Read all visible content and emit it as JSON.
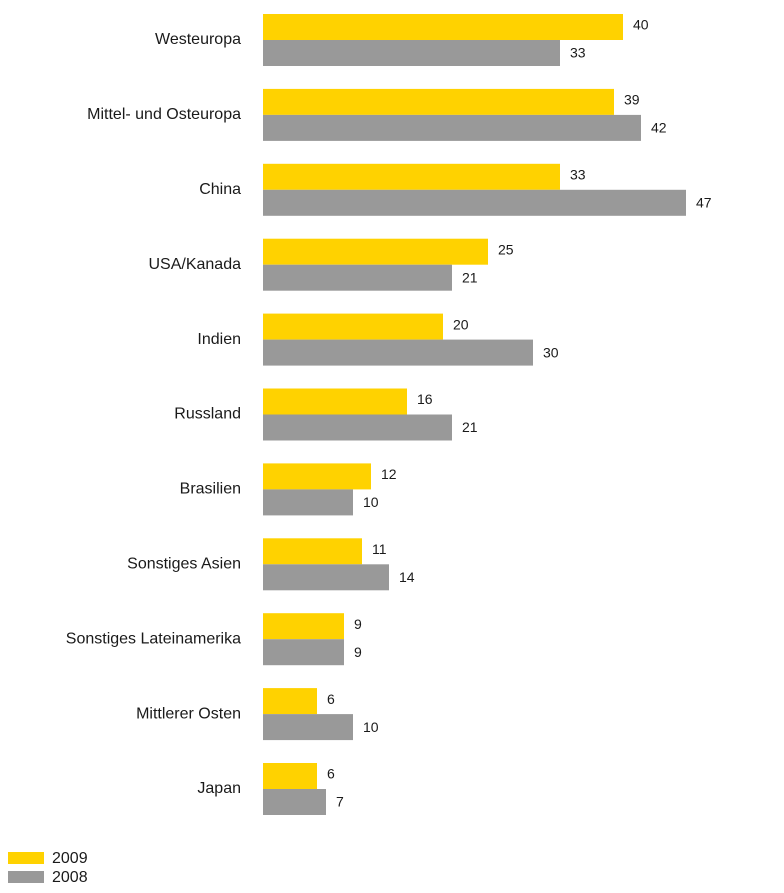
{
  "chart_data": {
    "type": "bar",
    "orientation": "horizontal",
    "categories": [
      "Westeuropa",
      "Mittel- und Osteuropa",
      "China",
      "USA/Kanada",
      "Indien",
      "Russland",
      "Brasilien",
      "Sonstiges Asien",
      "Sonstiges Lateinamerika",
      "Mittlerer Osten",
      "Japan"
    ],
    "series": [
      {
        "name": "2009",
        "color": "#ffd200",
        "values": [
          40,
          39,
          33,
          25,
          20,
          16,
          12,
          11,
          9,
          6,
          6
        ]
      },
      {
        "name": "2008",
        "color": "#999999",
        "values": [
          33,
          42,
          47,
          21,
          30,
          21,
          10,
          14,
          9,
          10,
          7
        ]
      }
    ],
    "title": "",
    "xlabel": "",
    "ylabel": "",
    "xlim": [
      0,
      47
    ],
    "grid": false,
    "data_labels": true,
    "legend_position": "bottom-left"
  }
}
